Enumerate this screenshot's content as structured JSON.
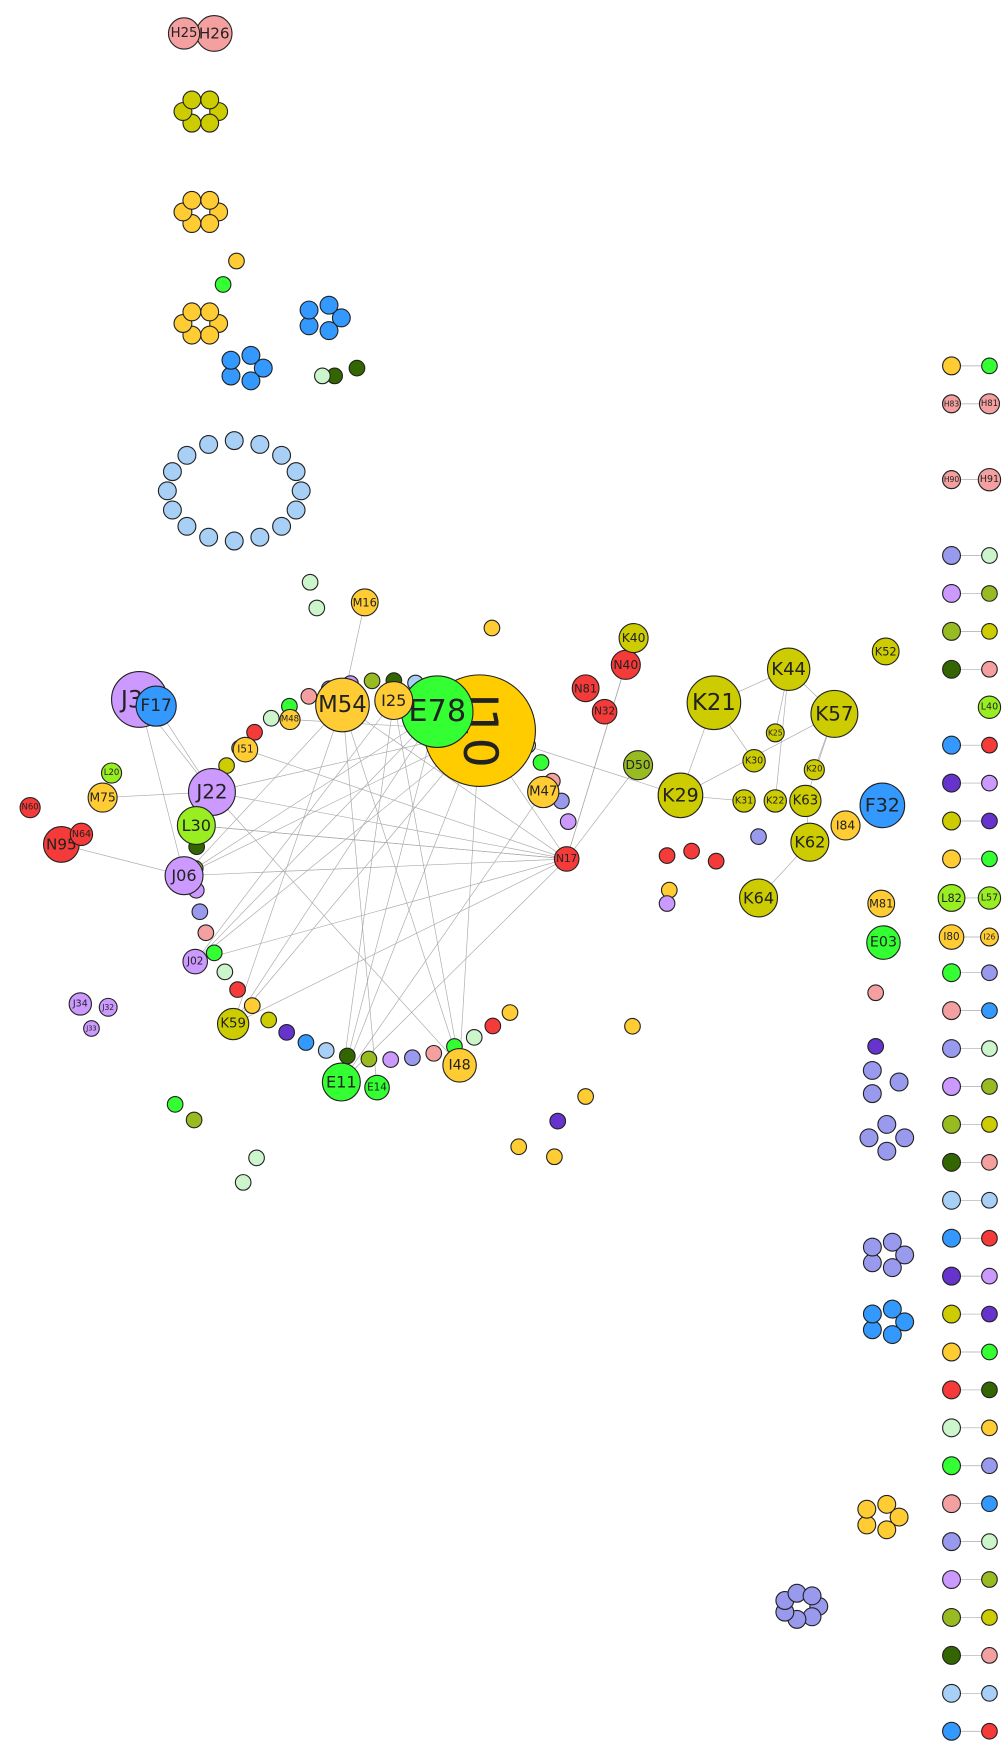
{
  "nodes": [
    {
      "label": "I10",
      "color": "#ffcc00"
    },
    {
      "label": "E78",
      "color": "#33ff33"
    },
    {
      "label": "M54",
      "color": "#ffcc33"
    },
    {
      "label": "I25",
      "color": "#ffcc33"
    },
    {
      "label": "M16",
      "color": "#ffcc33"
    },
    {
      "label": "J22",
      "color": "#cc99ff"
    },
    {
      "label": "J30",
      "color": "#cc99ff"
    },
    {
      "label": "F17",
      "color": "#3399ff"
    },
    {
      "label": "L30",
      "color": "#99ee22"
    },
    {
      "label": "J06",
      "color": "#cc99ff"
    },
    {
      "label": "M75",
      "color": "#ffcc33"
    },
    {
      "label": "L20",
      "color": "#99ee22"
    },
    {
      "label": "N95",
      "color": "#f53a3a"
    },
    {
      "label": "N64",
      "color": "#f53a3a"
    },
    {
      "label": "N60",
      "color": "#f53a3a"
    },
    {
      "label": "M47",
      "color": "#ffcc33"
    },
    {
      "label": "N17",
      "color": "#f53a3a"
    },
    {
      "label": "N81",
      "color": "#f53a3a"
    },
    {
      "label": "N32",
      "color": "#f53a3a"
    },
    {
      "label": "N40",
      "color": "#f53a3a"
    },
    {
      "label": "K40",
      "color": "#cccc00"
    },
    {
      "label": "D50",
      "color": "#99bb22"
    },
    {
      "label": "E11",
      "color": "#33ff33"
    },
    {
      "label": "E14",
      "color": "#33ff33"
    },
    {
      "label": "I48",
      "color": "#ffcc33"
    },
    {
      "label": "K59",
      "color": "#cccc00"
    },
    {
      "label": "J02",
      "color": "#cc99ff"
    },
    {
      "label": "K21",
      "color": "#cccc00"
    },
    {
      "label": "K44",
      "color": "#cccc00"
    },
    {
      "label": "K57",
      "color": "#cccc00"
    },
    {
      "label": "K29",
      "color": "#cccc00"
    },
    {
      "label": "K30",
      "color": "#cccc00"
    },
    {
      "label": "K31",
      "color": "#cccc00"
    },
    {
      "label": "K22",
      "color": "#cccc00"
    },
    {
      "label": "K63",
      "color": "#cccc00"
    },
    {
      "label": "K62",
      "color": "#cccc00"
    },
    {
      "label": "K64",
      "color": "#cccc00"
    },
    {
      "label": "K25",
      "color": "#cccc00"
    },
    {
      "label": "K20",
      "color": "#cccc00"
    },
    {
      "label": "I84",
      "color": "#ffcc33"
    },
    {
      "label": "F32",
      "color": "#3399ff"
    },
    {
      "label": "K52",
      "color": "#cccc00"
    },
    {
      "label": "M81",
      "color": "#ffcc33"
    },
    {
      "label": "E03",
      "color": "#33ff33"
    },
    {
      "label": "H26",
      "color": "#f4a0a0"
    },
    {
      "label": "H25",
      "color": "#f4a0a0"
    },
    {
      "label": "J34",
      "color": "#cc99ff"
    },
    {
      "label": "J32",
      "color": "#cc99ff"
    },
    {
      "label": "J33",
      "color": "#cc99ff"
    },
    {
      "label": "I51",
      "color": "#ffcc33"
    },
    {
      "label": "M48",
      "color": "#ffcc33"
    },
    {
      "label": "L82",
      "color": "#99ee22"
    },
    {
      "label": "L57",
      "color": "#99ee22"
    },
    {
      "label": "I80",
      "color": "#ffcc33"
    },
    {
      "label": "I26",
      "color": "#ffcc33"
    },
    {
      "label": "L40",
      "color": "#99ee22"
    },
    {
      "label": "H83",
      "color": "#f4a0a0"
    },
    {
      "label": "H81",
      "color": "#f4a0a0"
    },
    {
      "label": "H90",
      "color": "#f4a0a0"
    },
    {
      "label": "H91",
      "color": "#f4a0a0"
    }
  ]
}
